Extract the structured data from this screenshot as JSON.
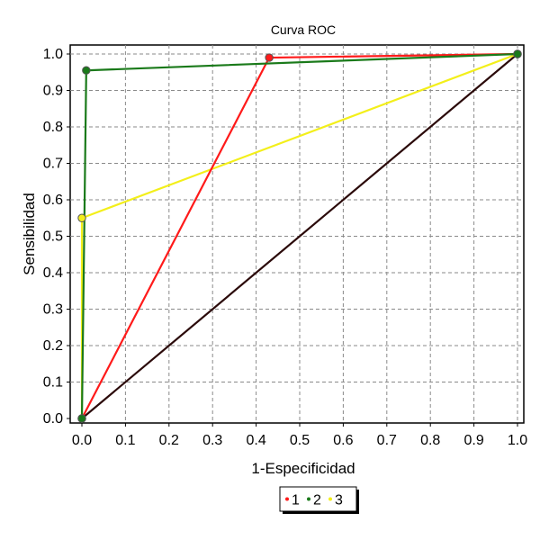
{
  "chart_data": {
    "type": "line",
    "title": "Curva ROC",
    "xlabel": "1-Especificidad",
    "ylabel": "Sensibilidad",
    "xlim": [
      0,
      1
    ],
    "ylim": [
      0,
      1
    ],
    "x_ticks": [
      "0.0",
      "0.1",
      "0.2",
      "0.3",
      "0.4",
      "0.5",
      "0.6",
      "0.7",
      "0.8",
      "0.9",
      "1.0"
    ],
    "y_ticks": [
      "0.0",
      "0.1",
      "0.2",
      "0.3",
      "0.4",
      "0.5",
      "0.6",
      "0.7",
      "0.8",
      "0.9",
      "1.0"
    ],
    "grid": true,
    "legend_position": "bottom-center",
    "reference_line": {
      "x": [
        0,
        1
      ],
      "y": [
        0,
        1
      ],
      "color": "#2b0a0a"
    },
    "series": [
      {
        "name": "1",
        "color": "#ff1a1a",
        "x": [
          0,
          0.43,
          1
        ],
        "y": [
          0,
          0.99,
          1
        ]
      },
      {
        "name": "2",
        "color": "#1a7a1a",
        "x": [
          0,
          0.01,
          1
        ],
        "y": [
          0,
          0.955,
          1
        ]
      },
      {
        "name": "3",
        "color": "#f3ef1a",
        "x": [
          0,
          0,
          1
        ],
        "y": [
          0,
          0.55,
          1
        ]
      }
    ]
  }
}
